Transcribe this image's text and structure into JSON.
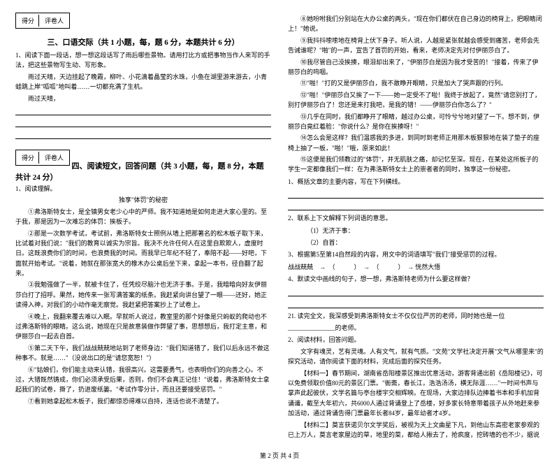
{
  "score_label_1": "得分",
  "score_label_2": "评卷人",
  "left": {
    "section3_title": "三、口语交际（共 1 小题，每，题 6 分，本题共计 6 分）",
    "s3_intro": "1、阅读下面一段话，想一想这段话写了雨后哪些景物。请用打比方或把事物当作人来写的手法，把这些景物写生动、写形象。",
    "s3_text": "雨过天晴，天边挂起了晚霞，柳叶、小花滴着晶莹的水珠，小鱼在湖里游来游去，小青蛙跳上岸\"呱呱\"地叫着……一切都充满了生机。",
    "s3_prompt": "雨过天晴，",
    "section4_title": "四、阅读短文，回答问题（共 3 小题，每，题 8 分，本题共计 24 分）",
    "s4_q1": "1、阅读理解。",
    "s4_title": "独享\"体罚\"的秘密",
    "p1": "①弗洛斯特女士，是全镇男女老少心中的严师。我不知道她是如何走进大家心里的。至于我，那是因为一次难忘的体罚：挨板子。",
    "p2": "②那是一次数学考试，考试前，弗洛斯特女士照例从墙上把那著名的松木板子取下来，比试着对我们说：\"我们的教育以诚实为宗旨。我决不允许任何人在这里自欺欺人，虚度时日。这既浪费你们的时间，也浪费我的时间。而我早已年纪不轻了，奉陪不起——好吧，下面就开始考试。\"说着，她就在那张宽大的橡木办公桌后坐下来，拿起一本书，径自翻了起来。",
    "p3": "③我勉强做了一半，就被卡住了，任凭绞尽脑汁也无济于事。于是，我暗暗向好友伊丽莎白打了招呼。果然，她传来一张写满答案的纸条。我赶紧向讲台望了一眼——还好，她正读得入神，对我们的小动作毫无察觉。我赶紧把答案抄上了试卷上。",
    "p4": "④晚上，我翻来覆去难以入眠。早就听人说过，教室里的那个好像是只蚂蚁的爬动也不过弗洛斯特的眼睛。这么说，她现在只是故意装做作弊望了事，思想想后，我打定主意，和伊丽莎白一起去自首。",
    "p5": "⑤第二天下午，我们战战兢兢地站到了老师身边：\"我们知道错了，我们以后永远不做这种事不。就是……\"（没说出口的是\"请您宽恕！\"）",
    "p6": "⑥\"姑娘们，你们能主动来认错，我很高兴。这需要勇气，也表明你们的向善之心。不过，大错既然铸成，你们必须承受后果，否则，你们不会真正记住！\"说着，弗洛斯特女士拿起我们的试卷，撕了，扔进废纸篓。\"考试作零分计，而且还要接受惩罚。\"",
    "p7": "⑦看到她拿起松木板子，我们都惊恐得难以自持，连话也说不清楚了。"
  },
  "right": {
    "p8": "⑧她吩咐我们分别站在大办公桌的两头，\"现在你们都伏在自己身边的椅背上，把眼睛闭上！\"她说。",
    "p9": "⑨我抖抖嗦嗦地在椅背上伏下身子。听人说，人越是紧张就越会感受到痛苦，老师会先告诫谁呢？\"啪\"的一声，宣告了首罚的开始，看来，老师决定先对付伊丽莎白了。",
    "p10": "⑩我尽管自己没挨揍，眼泪却出来了，\"伊丽莎白是因为我才受苦的！\"接着，传来了伊丽莎白的呜咽。",
    "p11": "⑪\"啪！\"打的又是伊丽莎白，我不敢睁开眼睛，只是加大了哭声跟的行列。",
    "p12": "⑫\"啪！\"伊丽莎白又挨了一下——她一定受不了啦！我终于放起了，竟然\"请您别打了，别打伊丽莎白了！您还是来打我吧，是我的错！——伊丽莎白你怎么了？\"",
    "p13": "⑬几乎在同时，我们都睁开了眼睛，越过办公桌，可怜兮兮地对望了一下。想不到，伊丽莎白竟红着脸：\"你说什么？是你在挨揍呀！\"",
    "p14": "⑭怎么会是这样？我们温惑我的多进，到同时到老师正用那木板狠狠地在装了垫子的座椅上抽了一板，\"啪！\"哦，原来如此！",
    "p15": "⑮这便是我们领教过的\"体罚\"，并无肌肤之痛，却记忆至深。现在，在某处这所板子的学生一定都像我们一样：在为弗洛斯特女士上的崇者者的同时，独享这一份秘密。",
    "q1": "1、概括文章的主要内容，写在下列横线。",
    "q2": "2、联系上下文解释下列词语的意思。",
    "q2_1": "（1）无济于事：",
    "q2_2": "（2）自首：",
    "q3": "3、根据第5至第14自然段的内容，用文中的词语填写\"我们\"接受惩罚的过程。",
    "q3_text": "战战兢兢　→　（　　　）　→　（　　　）　→ 恍然大悟",
    "q4": "4、默读文中画线的句子，想一想，弗洛斯特老师为什么要这样做？",
    "q5": "21. 读完全文，我深感受到弗洛斯特女士不仅仅位严厉的老师，同时她也是一位",
    "q5_end": "的老师。",
    "s4_q2": "2、阅读材料，回答问题。",
    "m1_intro": "文字有魂灵，艺有灵魂。人有文气，就有气质。\"文苑\"文学社决定开展\"文气从哪里来\"的探究活动，请你阅读下面的材料，完成后面的探究任务。",
    "m1": "【材料一】春节期间，湖南省岳阳楼景区推出优意活动，游客背通出前《岳阳楼记》，可以免费领取价值80元的景区门票。\"衙斋，春长江，浩浩汤汤，横无际涯……\"一时间书声与掌声此起彼伏，文学名篇与亭台楼宇交相辉映。在现场，大家边排队边捧着书本和手机加背诵谶，截至大年初六，共6000人通过背诵登上了岳楼，好多家长特意带着孩子从外地赶来参加活动，通过背诵告得门票最年长者84岁，最年幼者才4岁。",
    "m2": "【材料二】莫言获诺贝尔文学奖后，被视为天上文曲星下凡，到他山东高密老家参观的已上万人，莫言老家屋边的草，地里的菜，都给人揪去了，抢疯度，挖砖墙的也不少，据说"
  },
  "footer": "第 2 页 共 4 页"
}
